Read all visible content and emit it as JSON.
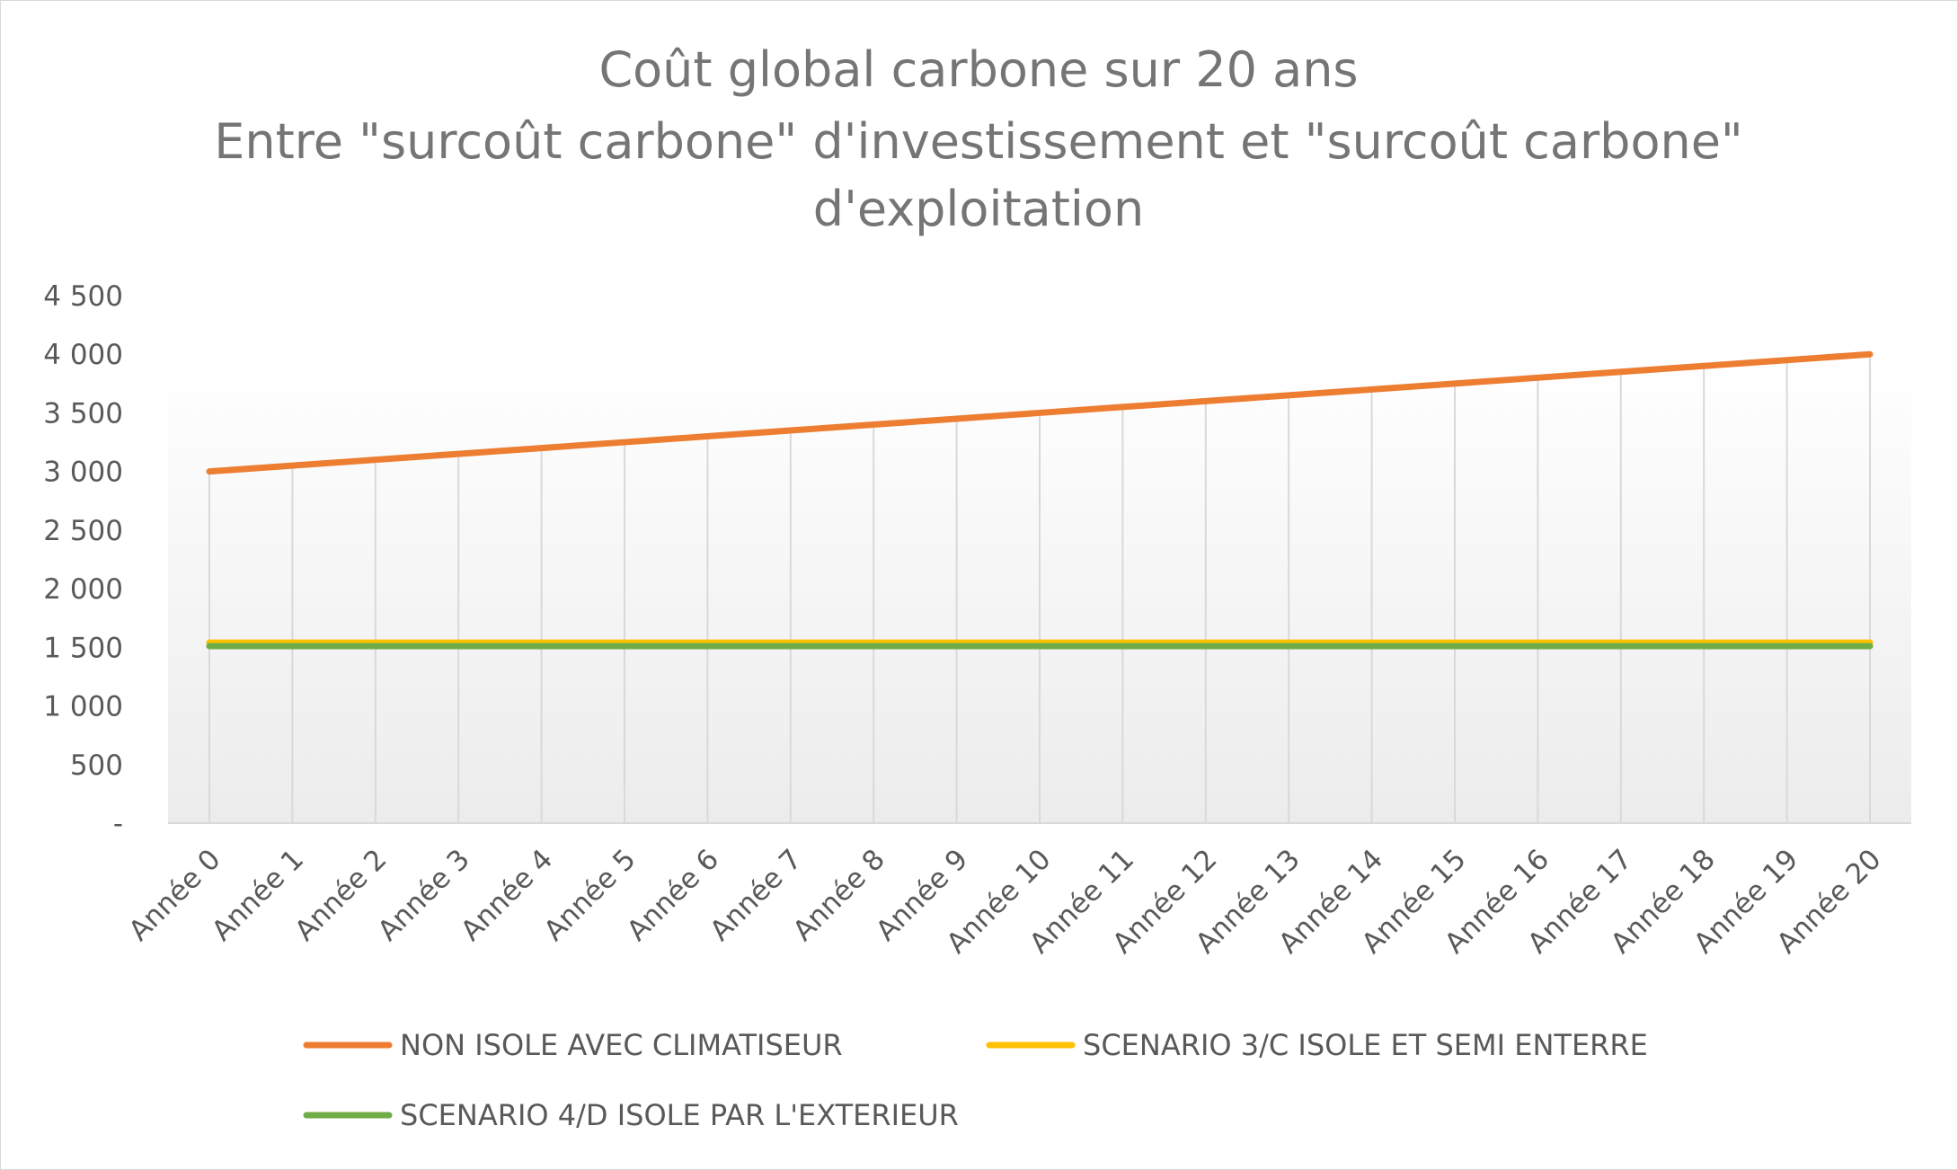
{
  "chart_data": {
    "type": "line",
    "title_lines": [
      "Coût global carbone sur 20 ans",
      "Entre \"surcoût carbone\" d'investissement et \"surcoût carbone\"",
      "d'exploitation"
    ],
    "xlabel": "",
    "ylabel": "",
    "categories": [
      "Année 0",
      "Année 1",
      "Année 2",
      "Année 3",
      "Année 4",
      "Année 5",
      "Année 6",
      "Année 7",
      "Année 8",
      "Année 9",
      "Année 10",
      "Année 11",
      "Année 12",
      "Année 13",
      "Année 14",
      "Année 15",
      "Année 16",
      "Année 17",
      "Année 18",
      "Année 19",
      "Année 20"
    ],
    "ylim": [
      0,
      4500
    ],
    "yticks": [
      0,
      500,
      1000,
      1500,
      2000,
      2500,
      3000,
      3500,
      4000,
      4500
    ],
    "ytick_labels": [
      "-",
      "500",
      "1 000",
      "1 500",
      "2 000",
      "2 500",
      "3 000",
      "3 500",
      "4 000",
      "4 500"
    ],
    "grid": "vertical",
    "legend_position": "bottom",
    "series": [
      {
        "name": "NON ISOLE AVEC CLIMATISEUR",
        "color": "#ED7D31",
        "values": [
          3000,
          3050,
          3100,
          3150,
          3200,
          3250,
          3300,
          3350,
          3400,
          3450,
          3500,
          3550,
          3600,
          3650,
          3700,
          3750,
          3800,
          3850,
          3900,
          3950,
          4000
        ]
      },
      {
        "name": "SCENARIO 3/C ISOLE ET SEMI ENTERRE",
        "color": "#FFC000",
        "values": [
          1540,
          1540,
          1540,
          1540,
          1540,
          1540,
          1540,
          1540,
          1540,
          1540,
          1540,
          1540,
          1540,
          1540,
          1540,
          1540,
          1540,
          1540,
          1540,
          1540,
          1540
        ]
      },
      {
        "name": "SCENARIO 4/D ISOLE PAR L'EXTERIEUR",
        "color": "#70AD47",
        "values": [
          1510,
          1510,
          1510,
          1510,
          1510,
          1510,
          1510,
          1510,
          1510,
          1510,
          1510,
          1510,
          1510,
          1510,
          1510,
          1510,
          1510,
          1510,
          1510,
          1510,
          1510
        ]
      }
    ]
  }
}
